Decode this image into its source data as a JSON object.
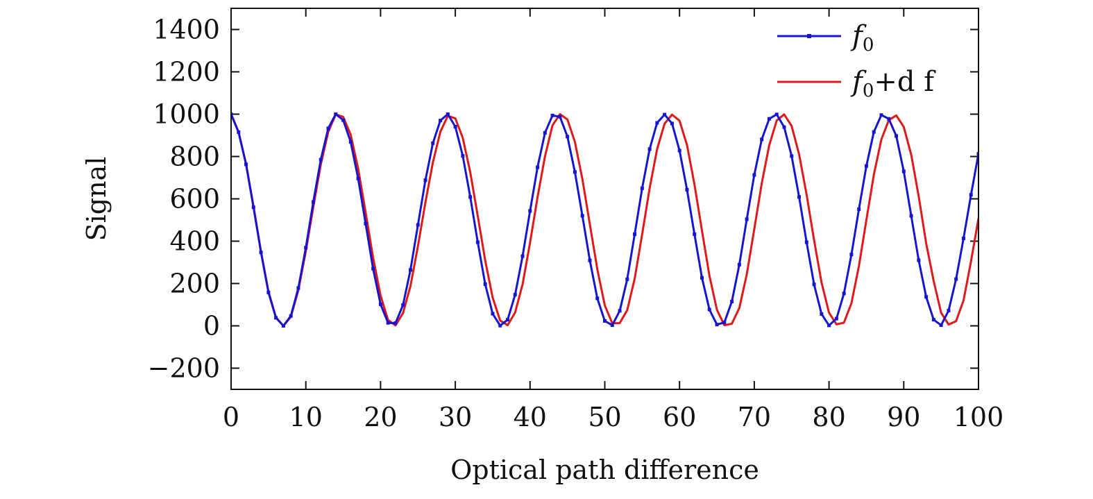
{
  "chart_data": {
    "type": "line",
    "xlabel": "Optical path difference",
    "ylabel": "Signal",
    "xlim": [
      0,
      100
    ],
    "ylim": [
      -300,
      1500
    ],
    "xticks": [
      0,
      10,
      20,
      30,
      40,
      50,
      60,
      70,
      80,
      90,
      100
    ],
    "yticks": [
      -200,
      0,
      200,
      400,
      600,
      800,
      1000,
      1200,
      1400
    ],
    "ytick_labels": [
      "−200",
      "0",
      "200",
      "400",
      "600",
      "800",
      "1000",
      "1200",
      "1400"
    ],
    "grid": false,
    "legend_position": "top-right",
    "series": [
      {
        "name": "f0",
        "legend": {
          "main": "f",
          "sub": "0",
          "rest": ""
        },
        "color": "#1414d2",
        "markers": true,
        "x": [
          0,
          1,
          2,
          3,
          4,
          5,
          6,
          7,
          8,
          9,
          10,
          11,
          12,
          13,
          14,
          15,
          16,
          17,
          18,
          19,
          20,
          21,
          22,
          23,
          24,
          25,
          26,
          27,
          28,
          29,
          30,
          31,
          32,
          33,
          34,
          35,
          36,
          37,
          38,
          39,
          40,
          41,
          42,
          43,
          44,
          45,
          46,
          47,
          48,
          49,
          50,
          51,
          52,
          53,
          54,
          55,
          56,
          57,
          58,
          59,
          60,
          61,
          62,
          63,
          64,
          65,
          66,
          67,
          68,
          69,
          70,
          71,
          72,
          73,
          74,
          75,
          76,
          77,
          78,
          79,
          80,
          81,
          82,
          83,
          84,
          85,
          86,
          87,
          88,
          89,
          90,
          91,
          92,
          93,
          94,
          95,
          96,
          97,
          98,
          99,
          100
        ],
        "values": [
          1000,
          915,
          763,
          560,
          347,
          158,
          38,
          0,
          47,
          179,
          369,
          585,
          785,
          933,
          1000,
          972,
          869,
          696,
          483,
          270,
          102,
          14,
          13,
          98,
          264,
          477,
          688,
          863,
          970,
          1000,
          941,
          803,
          609,
          395,
          197,
          57,
          1,
          29,
          147,
          329,
          543,
          749,
          912,
          994,
          988,
          894,
          727,
          520,
          309,
          130,
          23,
          3,
          71,
          220,
          433,
          650,
          835,
          959,
          998,
          956,
          828,
          643,
          433,
          227,
          77,
          6,
          16,
          115,
          289,
          504,
          713,
          881,
          978,
          999,
          939,
          802,
          609,
          395,
          196,
          56,
          2,
          34,
          153,
          337,
          551,
          755,
          916,
          996,
          978,
          897,
          730,
          520,
          310,
          137,
          29,
          3,
          72,
          221,
          413,
          619,
          813
        ]
      },
      {
        "name": "f0+df",
        "legend": {
          "main": "f",
          "sub": "0",
          "rest": "+d f"
        },
        "color": "#e01818",
        "markers": false,
        "x": [
          0,
          1,
          2,
          3,
          4,
          5,
          6,
          7,
          8,
          9,
          10,
          11,
          12,
          13,
          14,
          15,
          16,
          17,
          18,
          19,
          20,
          21,
          22,
          23,
          24,
          25,
          26,
          27,
          28,
          29,
          30,
          31,
          32,
          33,
          34,
          35,
          36,
          37,
          38,
          39,
          40,
          41,
          42,
          43,
          44,
          45,
          46,
          47,
          48,
          49,
          50,
          51,
          52,
          53,
          54,
          55,
          56,
          57,
          58,
          59,
          60,
          61,
          62,
          63,
          64,
          65,
          66,
          67,
          68,
          69,
          70,
          71,
          72,
          73,
          74,
          75,
          76,
          77,
          78,
          79,
          80,
          81,
          82,
          83,
          84,
          85,
          86,
          87,
          88,
          89,
          90,
          91,
          92,
          93,
          94,
          95,
          96,
          97,
          98,
          99,
          100
        ],
        "values": [
          1000,
          916,
          766,
          565,
          352,
          162,
          40,
          0,
          43,
          168,
          352,
          561,
          762,
          916,
          999,
          987,
          903,
          743,
          536,
          322,
          143,
          28,
          2,
          60,
          188,
          377,
          583,
          772,
          917,
          992,
          980,
          888,
          725,
          520,
          309,
          133,
          25,
          3,
          63,
          196,
          393,
          607,
          801,
          947,
          1000,
          975,
          869,
          694,
          480,
          268,
          97,
          12,
          13,
          74,
          223,
          433,
          650,
          835,
          955,
          998,
          969,
          854,
          668,
          450,
          237,
          76,
          3,
          10,
          84,
          244,
          457,
          673,
          853,
          970,
          999,
          944,
          810,
          620,
          405,
          205,
          62,
          7,
          15,
          107,
          282,
          500,
          714,
          880,
          972,
          994,
          940,
          808,
          612,
          390,
          212,
          62,
          6,
          22,
          120,
          305,
          508
        ]
      }
    ]
  }
}
